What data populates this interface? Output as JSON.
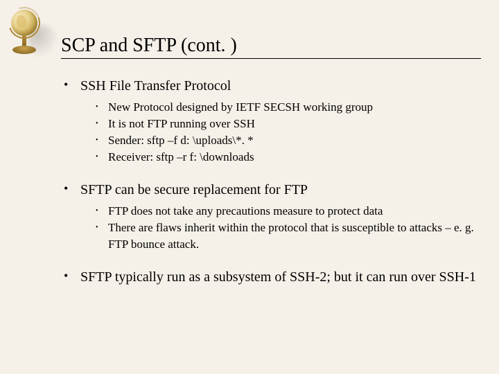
{
  "background_color": "#f5f0e8",
  "text_color": "#000000",
  "font_family": "Times New Roman",
  "title": {
    "text": "SCP and SFTP (cont. )",
    "fontsize": 28,
    "underline_color": "#000000"
  },
  "globe": {
    "ball_gradient": [
      "#f6e8c0",
      "#e6d28c",
      "#c8a84e",
      "#9c7a2e"
    ],
    "ring_color": "#b08a3a",
    "stand_color": "#8a6820",
    "base_color": "#8a6820"
  },
  "bullets": [
    {
      "text": "SSH File Transfer Protocol",
      "fontsize": 20,
      "sub": [
        "New Protocol designed by IETF SECSH working group",
        "It is not FTP running over SSH",
        "Sender: sftp –f d: \\uploads\\*. *",
        "Receiver: sftp –r f: \\downloads"
      ],
      "sub_fontsize": 17
    },
    {
      "text": "SFTP can be secure replacement for FTP",
      "fontsize": 20,
      "sub": [
        "FTP does not take any precautions measure to protect data",
        "There are flaws inherit within the protocol that is susceptible to attacks – e. g. FTP bounce attack."
      ],
      "sub_fontsize": 17
    },
    {
      "text": "SFTP typically run as a subsystem of SSH-2; but it can run over SSH-1",
      "fontsize": 20,
      "sub": [],
      "sub_fontsize": 17
    }
  ]
}
